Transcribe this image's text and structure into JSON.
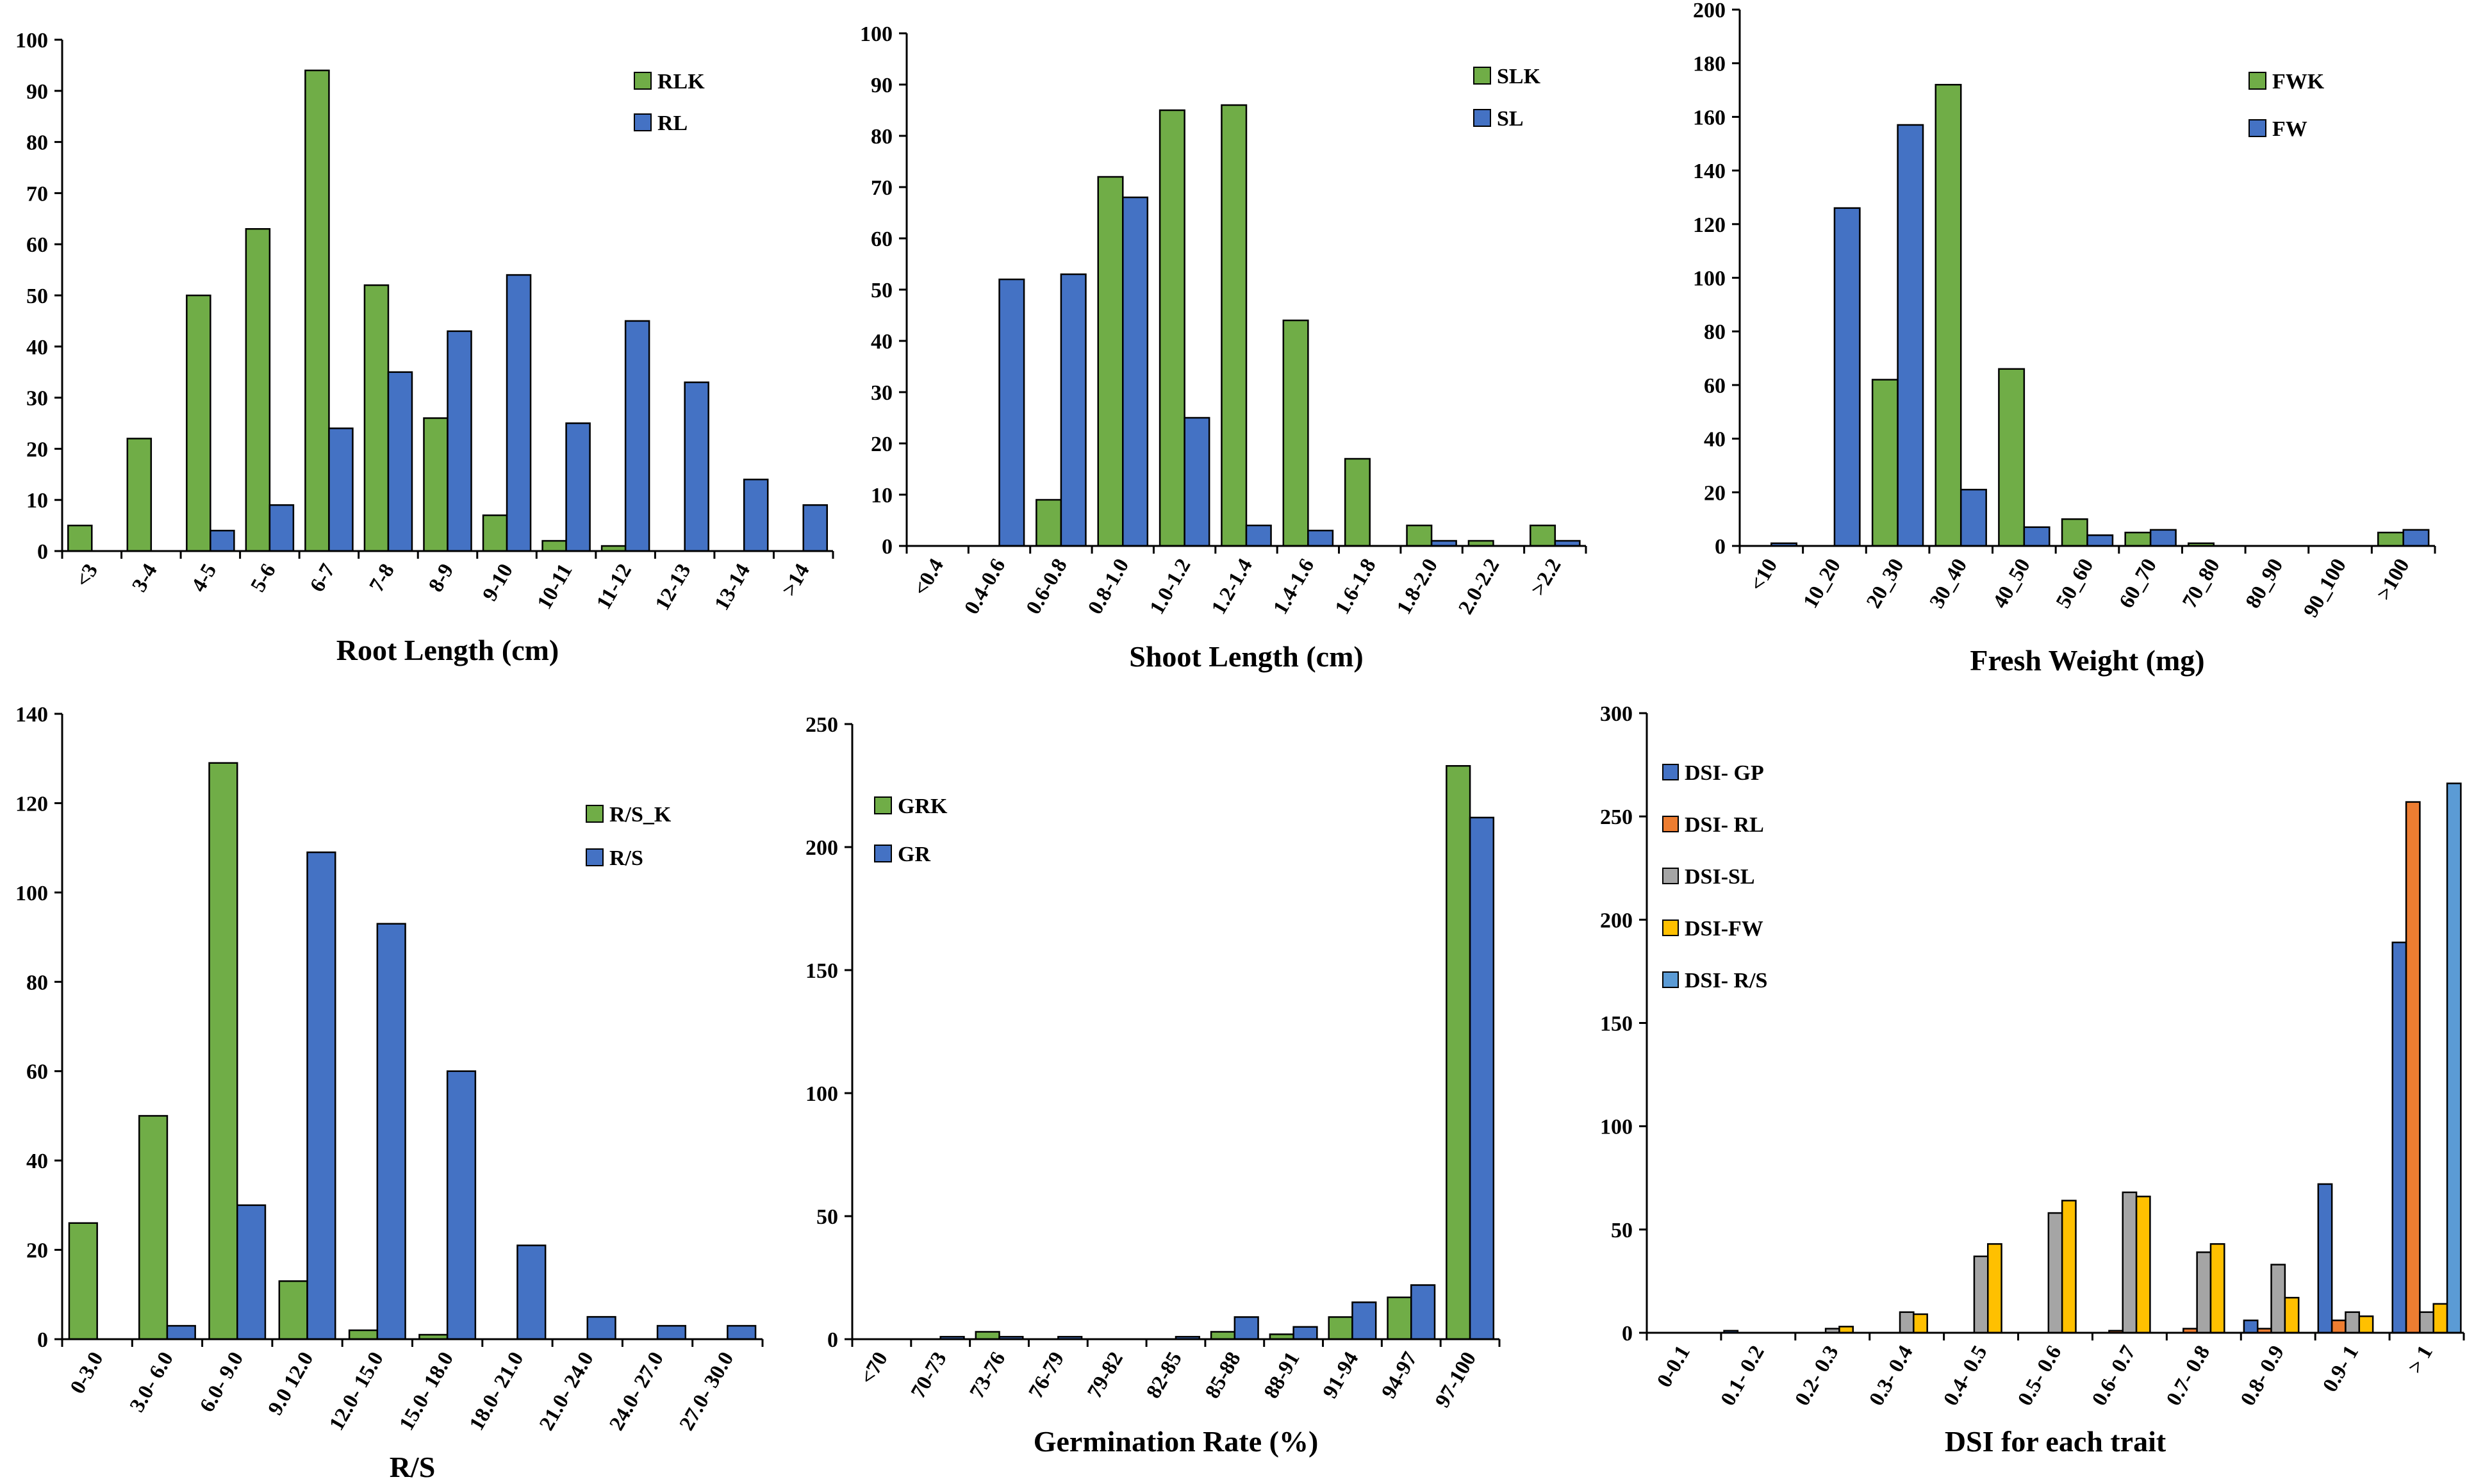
{
  "colors": {
    "green": "#70ad47",
    "blue": "#4472c4",
    "orange": "#ed7d31",
    "gray": "#a5a5a5",
    "yellow": "#ffc000",
    "lightblue": "#5b9bd5"
  },
  "chart_data": [
    {
      "id": "root-length",
      "type": "bar",
      "xlabel": "Root Length (cm)",
      "ylim": [
        0,
        100
      ],
      "yticks": [
        0,
        10,
        20,
        30,
        40,
        50,
        60,
        70,
        80,
        90,
        100
      ],
      "categories": [
        "<3",
        "3-4",
        "4-5",
        "5-6",
        "6-7",
        "7-8",
        "8-9",
        "9-10",
        "10-11",
        "11-12",
        "12-13",
        "13-14",
        ">14"
      ],
      "series": [
        {
          "name": "RLK",
          "color": "green",
          "values": [
            5,
            22,
            50,
            63,
            94,
            52,
            26,
            7,
            2,
            1,
            0,
            0,
            0
          ]
        },
        {
          "name": "RL",
          "color": "blue",
          "values": [
            0,
            0,
            4,
            9,
            24,
            35,
            43,
            54,
            25,
            45,
            33,
            14,
            9
          ]
        }
      ],
      "legend_position": "top-right"
    },
    {
      "id": "shoot-length",
      "type": "bar",
      "xlabel": "Shoot Length (cm)",
      "ylim": [
        0,
        100
      ],
      "yticks": [
        0,
        10,
        20,
        30,
        40,
        50,
        60,
        70,
        80,
        90,
        100
      ],
      "categories": [
        "<0.4",
        "0.4-0.6",
        "0.6-0.8",
        "0.8-1.0",
        "1.0-1.2",
        "1.2-1.4",
        "1.4-1.6",
        "1.6-1.8",
        "1.8-2.0",
        "2.0-2.2",
        ">2.2"
      ],
      "series": [
        {
          "name": "SLK",
          "color": "green",
          "values": [
            0,
            0,
            9,
            72,
            85,
            86,
            44,
            17,
            4,
            1,
            4
          ]
        },
        {
          "name": "SL",
          "color": "blue",
          "values": [
            0,
            52,
            53,
            68,
            25,
            4,
            3,
            0,
            1,
            0,
            1
          ]
        }
      ],
      "legend_position": "top-right"
    },
    {
      "id": "fresh-weight",
      "type": "bar",
      "xlabel": "Fresh Weight (mg)",
      "ylim": [
        0,
        200
      ],
      "yticks": [
        0,
        20,
        40,
        60,
        80,
        100,
        120,
        140,
        160,
        180,
        200
      ],
      "categories": [
        "<10",
        "10_20",
        "20_30",
        "30_40",
        "40_50",
        "50_60",
        "60_70",
        "70_80",
        "80_90",
        "90_100",
        ">100"
      ],
      "series": [
        {
          "name": "FWK",
          "color": "green",
          "values": [
            0,
            0,
            62,
            172,
            66,
            10,
            5,
            1,
            0,
            0,
            5
          ]
        },
        {
          "name": "FW",
          "color": "blue",
          "values": [
            1,
            126,
            157,
            21,
            7,
            4,
            6,
            0,
            0,
            0,
            6
          ]
        }
      ],
      "legend_position": "top-right"
    },
    {
      "id": "root-shoot-ratio",
      "type": "bar",
      "xlabel": "R/S",
      "ylim": [
        0,
        140
      ],
      "yticks": [
        0,
        20,
        40,
        60,
        80,
        100,
        120,
        140
      ],
      "categories": [
        "0-3.0",
        "3.0- 6.0",
        "6.0- 9.0",
        "9.0 12.0",
        "12.0- 15.0",
        "15.0- 18.0",
        "18.0- 21.0",
        "21.0- 24.0",
        "24.0- 27.0",
        "27.0- 30.0"
      ],
      "series": [
        {
          "name": "R/S_K",
          "color": "green",
          "values": [
            26,
            50,
            129,
            13,
            2,
            1,
            0,
            0,
            0,
            0
          ]
        },
        {
          "name": "R/S",
          "color": "blue",
          "values": [
            0,
            3,
            30,
            109,
            93,
            60,
            21,
            5,
            3,
            3
          ]
        }
      ],
      "legend_position": "top-right"
    },
    {
      "id": "germination-rate",
      "type": "bar",
      "xlabel": "Germination Rate (%)",
      "ylim": [
        0,
        250
      ],
      "yticks": [
        0,
        50,
        100,
        150,
        200,
        250
      ],
      "categories": [
        "<70",
        "70-73",
        "73-76",
        "76-79",
        "79-82",
        "82-85",
        "85-88",
        "88-91",
        "91-94",
        "94-97",
        "97-100"
      ],
      "series": [
        {
          "name": "GRK",
          "color": "green",
          "values": [
            0,
            0,
            3,
            0,
            0,
            0,
            3,
            2,
            9,
            17,
            233
          ]
        },
        {
          "name": "GR",
          "color": "blue",
          "values": [
            0,
            1,
            1,
            1,
            0,
            1,
            9,
            5,
            15,
            22,
            212
          ]
        }
      ],
      "legend_position": "top-left"
    },
    {
      "id": "dsi",
      "type": "bar",
      "xlabel": "DSI for each trait",
      "ylim": [
        0,
        300
      ],
      "yticks": [
        0,
        50,
        100,
        150,
        200,
        250,
        300
      ],
      "categories": [
        "0-0.1",
        "0.1- 0.2",
        "0.2- 0.3",
        "0.3- 0.4",
        "0.4- 0.5",
        "0.5- 0.6",
        "0.6- 0.7",
        "0.7- 0.8",
        "0.8- 0.9",
        "0.9- 1",
        "> 1"
      ],
      "series": [
        {
          "name": "DSI- GP",
          "color": "blue",
          "values": [
            0,
            1,
            0,
            0,
            0,
            0,
            0,
            0,
            6,
            72,
            189
          ]
        },
        {
          "name": "DSI- RL",
          "color": "orange",
          "values": [
            0,
            0,
            0,
            0,
            0,
            0,
            1,
            2,
            2,
            6,
            257
          ]
        },
        {
          "name": "DSI-SL",
          "color": "gray",
          "values": [
            0,
            0,
            2,
            10,
            37,
            58,
            68,
            39,
            33,
            10,
            10
          ]
        },
        {
          "name": "DSI-FW",
          "color": "yellow",
          "values": [
            0,
            0,
            3,
            9,
            43,
            64,
            66,
            43,
            17,
            8,
            14
          ]
        },
        {
          "name": "DSI- R/S",
          "color": "lightblue",
          "values": [
            0,
            0,
            0,
            0,
            0,
            0,
            0,
            0,
            0,
            0,
            266
          ]
        }
      ],
      "legend_position": "top-left"
    }
  ]
}
